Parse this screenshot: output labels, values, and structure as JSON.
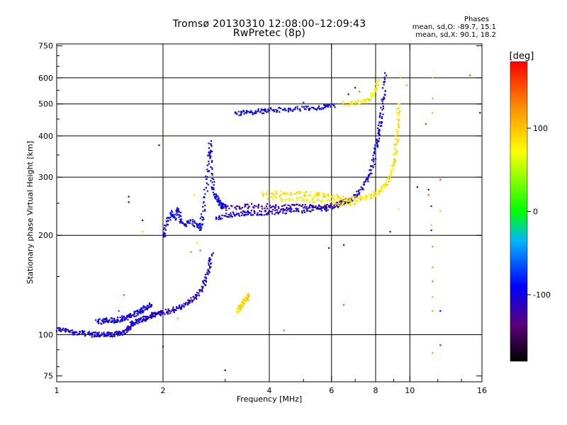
{
  "header": {
    "title_line1": "Tromsø 20130310 12:08:00–12:09:43",
    "title_line2": "RwPretec (8p)",
    "phase_heading": "Phases",
    "phase_o": "mean, sd,O: -89.7, 15.1",
    "phase_x": "mean, sd,X:  90.1, 18.2"
  },
  "colorbar": {
    "title": "[deg]",
    "range": [
      -180,
      180
    ],
    "tick_values": [
      100,
      0,
      -100
    ],
    "tick_labels": [
      "100",
      "0",
      "-100"
    ]
  },
  "chart_data": {
    "type": "scatter",
    "title": "Tromsø 20130310 12:08:00–12:09:43",
    "subtitle": "RwPretec (8p)",
    "xlabel": "Frequency [MHz]",
    "ylabel": "Stationary phase Virtual Height [km]",
    "xscale": "log",
    "yscale": "log",
    "xlim": [
      1,
      16
    ],
    "ylim": [
      72,
      760
    ],
    "xticks": [
      1,
      2,
      4,
      6,
      8,
      10,
      16
    ],
    "xtick_labels": [
      "1",
      "2",
      "4",
      "6",
      "8",
      "10",
      "16"
    ],
    "yticks": [
      75,
      100,
      200,
      300,
      400,
      500,
      600,
      750
    ],
    "ytick_labels": [
      "75",
      "100",
      "200",
      "300",
      "400",
      "500",
      "600",
      "750"
    ],
    "grid_x": [
      2,
      4,
      6,
      8,
      10
    ],
    "grid_y": [
      100,
      200,
      300,
      400,
      500,
      600
    ],
    "color_scale": "phase (deg), rainbow: -180 black → blue → green (0) → yellow (100) → red (180)",
    "series": [
      {
        "trace": "low-E sweep",
        "phase": -105,
        "x": [
          1.0,
          1.05,
          1.1,
          1.15,
          1.2,
          1.25,
          1.3,
          1.35,
          1.4,
          1.45,
          1.5,
          1.55,
          1.6,
          1.62,
          1.65,
          1.7,
          1.75,
          1.8,
          1.85,
          1.9,
          1.95,
          2.0,
          2.1,
          2.2,
          2.3,
          2.4,
          2.5,
          2.6,
          2.65,
          2.7,
          2.75
        ],
        "y": [
          104,
          103,
          102,
          101,
          101,
          100,
          100,
          100,
          100,
          100,
          101,
          102,
          104,
          107,
          109,
          110,
          111,
          112,
          114,
          115,
          116,
          117,
          118,
          120,
          123,
          127,
          132,
          140,
          148,
          160,
          175
        ]
      },
      {
        "trace": "low-E echo",
        "phase": -100,
        "x": [
          1.3,
          1.35,
          1.4,
          1.45,
          1.5,
          1.55,
          1.6,
          1.65,
          1.7,
          1.75,
          1.8,
          1.85
        ],
        "y": [
          109,
          110,
          111,
          110,
          111,
          112,
          113,
          115,
          117,
          119,
          121,
          123
        ]
      },
      {
        "trace": "E-F transition",
        "phase": -95,
        "x": [
          2.0,
          2.05,
          2.1,
          2.15,
          2.2,
          2.25,
          2.3,
          2.4,
          2.5,
          2.55,
          2.6,
          2.65,
          2.7,
          2.72,
          2.75,
          2.8,
          2.85,
          2.9,
          2.95,
          3.0
        ],
        "y": [
          195,
          215,
          235,
          225,
          240,
          222,
          215,
          220,
          215,
          210,
          230,
          280,
          340,
          380,
          300,
          270,
          255,
          250,
          245,
          245
        ]
      },
      {
        "trace": "F layer O-mode",
        "phase": -100,
        "x": [
          2.8,
          3.0,
          3.2,
          3.4,
          3.6,
          3.8,
          4.0,
          4.3,
          4.6,
          5.0,
          5.4,
          5.8,
          6.2,
          6.6,
          7.0,
          7.3,
          7.6,
          7.8,
          8.0,
          8.1,
          8.2,
          8.3,
          8.4,
          8.5
        ],
        "y": [
          225,
          230,
          232,
          233,
          234,
          234,
          235,
          236,
          237,
          238,
          240,
          242,
          246,
          252,
          262,
          275,
          295,
          320,
          360,
          390,
          420,
          460,
          520,
          620
        ]
      },
      {
        "trace": "F layer O-mode upper",
        "phase": -120,
        "x": [
          3.0,
          3.3,
          3.6,
          4.0,
          4.4,
          4.8,
          5.2,
          5.6,
          6.0,
          6.4,
          6.8
        ],
        "y": [
          242,
          244,
          245,
          245,
          244,
          244,
          244,
          244,
          246,
          250,
          257
        ]
      },
      {
        "trace": "F layer X-mode",
        "phase": 85,
        "x": [
          3.8,
          4.2,
          4.6,
          5.0,
          5.4,
          5.8,
          6.2,
          6.6,
          7.0,
          7.4,
          7.8,
          8.2,
          8.5,
          8.8,
          9.0,
          9.1,
          9.2,
          9.25,
          9.3
        ],
        "y": [
          265,
          268,
          268,
          267,
          265,
          263,
          261,
          258,
          258,
          260,
          263,
          270,
          283,
          300,
          330,
          360,
          400,
          450,
          500
        ]
      },
      {
        "trace": "F layer X-mode lower",
        "phase": 70,
        "x": [
          4.0,
          4.5,
          5.0,
          5.5,
          6.0,
          6.5,
          7.0
        ],
        "y": [
          257,
          258,
          257,
          255,
          252,
          250,
          250
        ]
      },
      {
        "trace": "multi-hop (2F)",
        "phase": -95,
        "x": [
          3.2,
          3.4,
          3.6,
          3.8,
          4.0,
          4.3,
          4.6,
          5.0,
          5.4,
          5.8,
          6.1
        ],
        "y": [
          465,
          470,
          472,
          475,
          478,
          480,
          482,
          484,
          487,
          490,
          495
        ]
      },
      {
        "trace": "multi-hop 2F X",
        "phase": 75,
        "x": [
          6.5,
          7.0,
          7.5,
          7.8,
          8.0,
          8.2
        ],
        "y": [
          500,
          505,
          510,
          525,
          550,
          590
        ]
      },
      {
        "trace": "E sporadic X",
        "phase": 90,
        "x": [
          3.25,
          3.3,
          3.35,
          3.4,
          3.45,
          3.5
        ],
        "y": [
          118,
          120,
          123,
          126,
          129,
          133
        ]
      }
    ],
    "scattered_points": [
      {
        "x": 1.6,
        "y": 262,
        "phase": -110
      },
      {
        "x": 1.6,
        "y": 252,
        "phase": -100
      },
      {
        "x": 1.75,
        "y": 222,
        "phase": -90
      },
      {
        "x": 1.75,
        "y": 205,
        "phase": 40
      },
      {
        "x": 1.95,
        "y": 375,
        "phase": -100
      },
      {
        "x": 2.0,
        "y": 92,
        "phase": -110
      },
      {
        "x": 2.45,
        "y": 265,
        "phase": 60
      },
      {
        "x": 2.5,
        "y": 190,
        "phase": 90
      },
      {
        "x": 2.55,
        "y": 180,
        "phase": 150
      },
      {
        "x": 2.4,
        "y": 178,
        "phase": 130
      },
      {
        "x": 3.0,
        "y": 78,
        "phase": -110
      },
      {
        "x": 1.55,
        "y": 132,
        "phase": 150
      },
      {
        "x": 1.5,
        "y": 118,
        "phase": -60
      },
      {
        "x": 2.2,
        "y": 112,
        "phase": 120
      },
      {
        "x": 4.4,
        "y": 103,
        "phase": 140
      },
      {
        "x": 6.5,
        "y": 123,
        "phase": 150
      },
      {
        "x": 6.5,
        "y": 187,
        "phase": -110
      },
      {
        "x": 5.9,
        "y": 183,
        "phase": -100
      },
      {
        "x": 5.8,
        "y": 237,
        "phase": -110
      },
      {
        "x": 8.8,
        "y": 205,
        "phase": -110
      },
      {
        "x": 9.3,
        "y": 240,
        "phase": 80
      },
      {
        "x": 9.8,
        "y": 570,
        "phase": 30
      },
      {
        "x": 9.4,
        "y": 600,
        "phase": 110
      },
      {
        "x": 10.5,
        "y": 280,
        "phase": -120
      },
      {
        "x": 11.3,
        "y": 275,
        "phase": -110
      },
      {
        "x": 11.3,
        "y": 265,
        "phase": 150
      },
      {
        "x": 11.5,
        "y": 245,
        "phase": -80
      },
      {
        "x": 11.5,
        "y": 215,
        "phase": 100
      },
      {
        "x": 11.5,
        "y": 207,
        "phase": -110
      },
      {
        "x": 11.6,
        "y": 520,
        "phase": 120
      },
      {
        "x": 11.6,
        "y": 600,
        "phase": 100
      },
      {
        "x": 11.6,
        "y": 470,
        "phase": 110
      },
      {
        "x": 11.6,
        "y": 185,
        "phase": 130
      },
      {
        "x": 11.6,
        "y": 160,
        "phase": 120
      },
      {
        "x": 11.6,
        "y": 145,
        "phase": 140
      },
      {
        "x": 11.6,
        "y": 130,
        "phase": 110
      },
      {
        "x": 11.6,
        "y": 118,
        "phase": 20
      },
      {
        "x": 11.6,
        "y": 88,
        "phase": 120
      },
      {
        "x": 12.2,
        "y": 295,
        "phase": 160
      },
      {
        "x": 12.2,
        "y": 237,
        "phase": 100
      },
      {
        "x": 12.2,
        "y": 93,
        "phase": 175
      },
      {
        "x": 12.2,
        "y": 118,
        "phase": -90
      },
      {
        "x": 11.1,
        "y": 435,
        "phase": 160
      },
      {
        "x": 14.8,
        "y": 610,
        "phase": 150
      },
      {
        "x": 15.8,
        "y": 470,
        "phase": -100
      },
      {
        "x": 5.0,
        "y": 505,
        "phase": -80
      },
      {
        "x": 7.0,
        "y": 560,
        "phase": -100
      },
      {
        "x": 7.2,
        "y": 545,
        "phase": 140
      },
      {
        "x": 6.7,
        "y": 535,
        "phase": -110
      }
    ]
  }
}
